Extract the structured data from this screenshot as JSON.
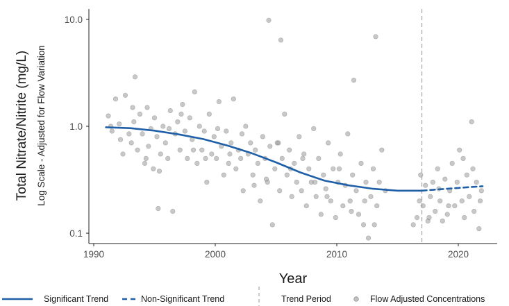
{
  "chart_data": {
    "type": "scatter",
    "xlabel": "Year",
    "ylabel": "Total Nitrate/Nitrite (mg/L)",
    "ylabel_sub": "Log Scale - Adjusted for Flow Variation",
    "y_scale": "log",
    "xlim": [
      1989.6,
      2023.2
    ],
    "ylim": [
      0.08,
      12.5
    ],
    "x_ticks": [
      1990,
      2000,
      2010,
      2020
    ],
    "x_tick_labels": [
      "1990",
      "2000",
      "2010",
      "2020"
    ],
    "y_ticks": [
      0.1,
      1.0,
      10.0
    ],
    "y_tick_labels": [
      "0.1",
      "1.0",
      "10.0"
    ],
    "grid": false,
    "legend_position": "bottom",
    "trend_period_start": 2017,
    "colors": {
      "trend": "#1f5fa8",
      "points": "#9a9a9a",
      "trend_period": "#a8a8a8"
    },
    "series": [
      {
        "name": "Significant Trend",
        "style": "solid",
        "x": [
          1991,
          1993,
          1995,
          1997,
          1999,
          2001,
          2003,
          2005,
          2007,
          2009,
          2011,
          2013,
          2015,
          2017
        ],
        "y": [
          0.98,
          0.96,
          0.91,
          0.84,
          0.76,
          0.66,
          0.56,
          0.46,
          0.37,
          0.31,
          0.28,
          0.26,
          0.25,
          0.25
        ]
      },
      {
        "name": "Non-Significant Trend",
        "style": "dashed",
        "x": [
          2017,
          2018,
          2019,
          2020,
          2021,
          2022
        ],
        "y": [
          0.25,
          0.255,
          0.26,
          0.265,
          0.27,
          0.275
        ]
      },
      {
        "name": "Flow Adjusted Concentrations",
        "style": "points",
        "x": [
          1991.2,
          1991.5,
          1991.8,
          1992.1,
          1992.4,
          1992.6,
          1992.9,
          1993.1,
          1993.3,
          1993.4,
          1993.6,
          1993.8,
          1994.0,
          1994.2,
          1994.4,
          1994.5,
          1994.7,
          1994.9,
          1995.0,
          1995.2,
          1995.3,
          1995.5,
          1995.7,
          1995.9,
          1996.1,
          1996.3,
          1996.5,
          1996.7,
          1996.9,
          1997.1,
          1997.3,
          1997.5,
          1997.7,
          1997.9,
          1998.1,
          1998.3,
          1998.5,
          1998.7,
          1998.9,
          1999.1,
          1999.3,
          1999.5,
          1999.7,
          1999.9,
          2000.1,
          2000.3,
          2000.5,
          2000.7,
          2000.9,
          2001.1,
          2001.3,
          2001.5,
          2001.7,
          2001.9,
          2002.1,
          2002.3,
          2002.5,
          2002.7,
          2002.9,
          2003.1,
          2003.3,
          2003.5,
          2003.7,
          2003.9,
          2004.1,
          2004.3,
          2004.4,
          2004.5,
          2004.7,
          2004.9,
          2005.1,
          2005.3,
          2005.4,
          2005.5,
          2005.7,
          2005.9,
          2006.1,
          2006.3,
          2006.5,
          2006.7,
          2006.9,
          2007.1,
          2007.3,
          2007.5,
          2007.7,
          2007.9,
          2008.1,
          2008.3,
          2008.5,
          2008.7,
          2008.9,
          2009.1,
          2009.3,
          2009.5,
          2009.7,
          2009.9,
          2010.1,
          2010.3,
          2010.5,
          2010.7,
          2010.9,
          2011.1,
          2011.3,
          2011.4,
          2011.6,
          2011.8,
          2012.0,
          2012.2,
          2012.4,
          2012.6,
          2012.8,
          2013.0,
          2013.2,
          2013.3,
          2013.5,
          2013.7,
          2014.0,
          2016.3,
          2016.6,
          2016.9,
          2017.1,
          2017.3,
          2017.5,
          2017.7,
          2017.9,
          2018.1,
          2018.3,
          2018.5,
          2018.7,
          2018.9,
          2019.1,
          2019.3,
          2019.5,
          2019.7,
          2019.9,
          2020.1,
          2020.3,
          2020.5,
          2020.7,
          2020.9,
          2021.1,
          2021.3,
          2021.5,
          2021.7,
          2021.9,
          1991.4,
          1992.2,
          1993.2,
          1994.3,
          1995.4,
          1996.2,
          1997.2,
          1998.2,
          1999.2,
          2000.2,
          2001.2,
          2002.2,
          2003.2,
          2004.2,
          2005.2,
          2006.2,
          2007.2,
          2008.2,
          2009.2,
          2010.2,
          2011.2,
          2012.3,
          2013.1,
          2016.8,
          2017.6,
          2018.4,
          2019.2,
          2020.4,
          2021.2,
          2021.8
        ],
        "y": [
          1.25,
          0.9,
          1.8,
          1.05,
          0.55,
          1.95,
          0.85,
          0.7,
          1.1,
          2.9,
          0.6,
          1.3,
          0.85,
          0.45,
          1.5,
          0.65,
          0.95,
          0.4,
          1.2,
          0.8,
          0.17,
          0.55,
          1.0,
          0.7,
          0.5,
          1.4,
          0.16,
          0.85,
          1.1,
          0.6,
          1.6,
          0.9,
          0.5,
          1.2,
          0.75,
          2.1,
          0.45,
          1.0,
          0.6,
          0.9,
          0.3,
          1.3,
          0.55,
          0.8,
          0.5,
          1.7,
          0.65,
          0.35,
          0.9,
          0.45,
          0.7,
          1.8,
          0.4,
          0.6,
          0.5,
          0.25,
          1.0,
          0.55,
          0.7,
          0.35,
          0.6,
          0.45,
          0.2,
          0.8,
          0.5,
          0.3,
          9.8,
          0.65,
          0.12,
          0.4,
          0.7,
          0.25,
          6.4,
          0.5,
          1.3,
          0.35,
          0.6,
          0.22,
          0.45,
          0.3,
          0.8,
          0.25,
          0.55,
          0.18,
          0.4,
          0.3,
          0.95,
          0.22,
          0.5,
          0.15,
          0.35,
          0.26,
          0.7,
          0.2,
          0.4,
          0.14,
          0.3,
          0.55,
          0.18,
          0.28,
          0.85,
          0.2,
          0.35,
          2.7,
          0.25,
          0.15,
          0.45,
          0.12,
          0.3,
          0.09,
          0.22,
          0.4,
          6.9,
          0.18,
          0.3,
          0.6,
          0.25,
          0.12,
          0.14,
          0.35,
          0.18,
          0.28,
          0.13,
          0.22,
          0.3,
          0.16,
          0.4,
          0.2,
          0.13,
          0.32,
          0.15,
          0.25,
          0.45,
          0.18,
          0.3,
          0.6,
          0.2,
          0.14,
          0.35,
          0.22,
          1.1,
          0.16,
          0.3,
          0.11,
          0.25,
          1.0,
          0.75,
          1.5,
          0.5,
          0.38,
          0.95,
          1.3,
          0.6,
          0.5,
          0.95,
          0.55,
          0.85,
          0.28,
          0.32,
          0.7,
          0.4,
          0.5,
          0.3,
          0.22,
          0.4,
          0.16,
          0.2,
          0.12,
          0.2,
          0.14,
          0.26,
          0.18,
          0.5,
          0.4,
          0.2
        ]
      }
    ],
    "legend": [
      {
        "label": "Significant Trend",
        "symbol": "solid-line"
      },
      {
        "label": "Non-Significant Trend",
        "symbol": "dashed-line"
      },
      {
        "label": "Trend Period",
        "symbol": "vertical-dashed-line"
      },
      {
        "label": "Flow Adjusted Concentrations",
        "symbol": "point"
      }
    ]
  }
}
